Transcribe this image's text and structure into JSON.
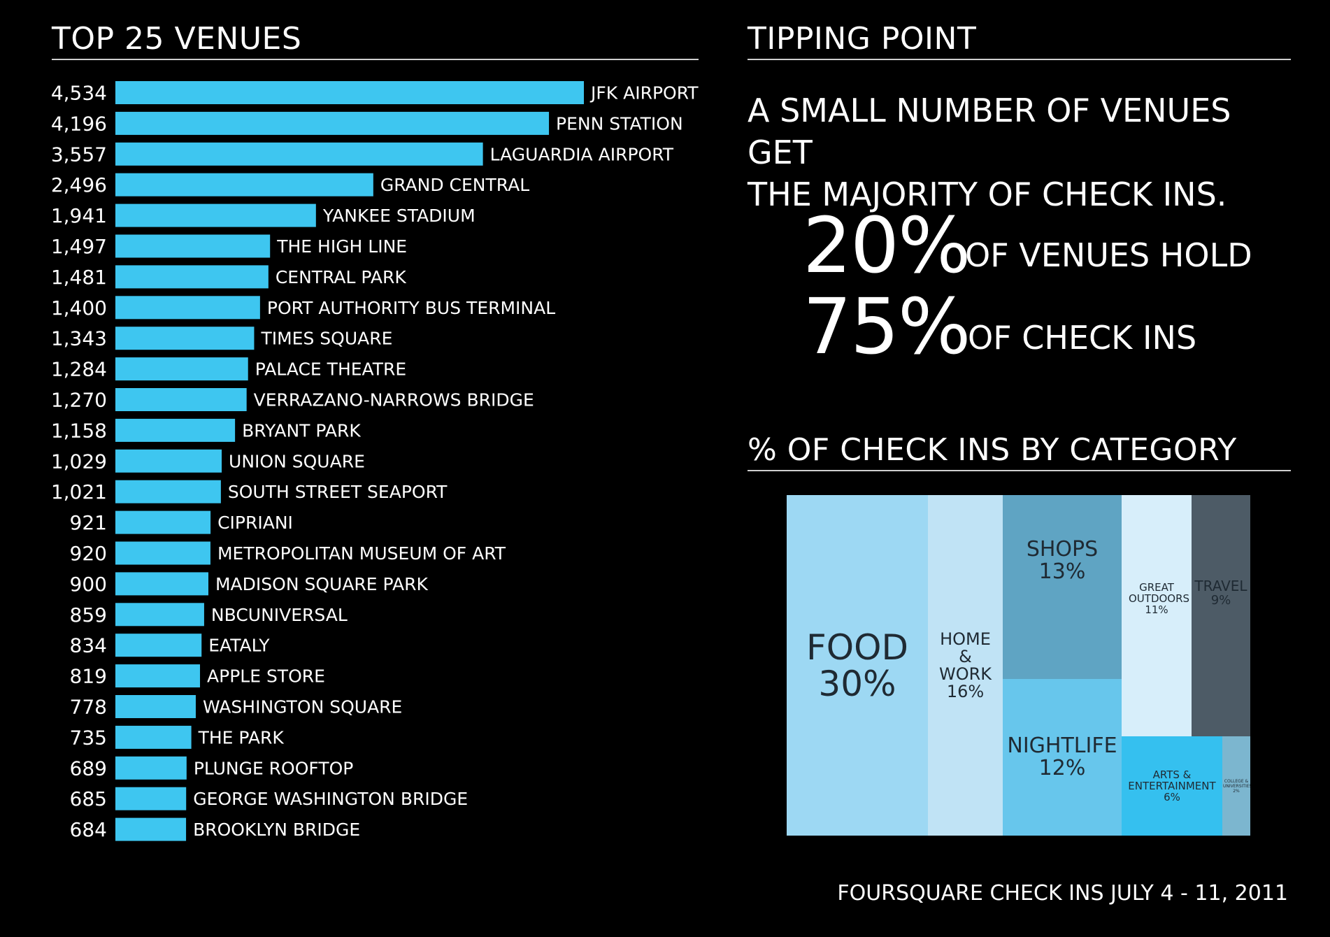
{
  "left_title": "TOP 25 VENUES",
  "right_title": "TIPPING POINT",
  "category_title": "% OF CHECK INS BY CATEGORY",
  "headline_line1": "A SMALL NUMBER OF VENUES GET",
  "headline_line2": "THE MAJORITY OF CHECK INS.",
  "stat1": {
    "value": "20%",
    "text": "OF VENUES HOLD"
  },
  "stat2": {
    "value": "75%",
    "text": "OF CHECK INS"
  },
  "footer": "FOURSQUARE CHECK INS JULY 4 - 11, 2011",
  "colors": {
    "bar": "#3ec6f0",
    "food": "#9dd8f3",
    "home_work": "#c0e3f5",
    "shops": "#5fa4c3",
    "nightlife": "#67c6ec",
    "great_outdoors": "#d7eefa",
    "travel": "#4d5b66",
    "arts": "#35c0ef",
    "college": "#7cb6cf"
  },
  "chart_data": [
    {
      "type": "bar",
      "orientation": "horizontal",
      "title": "TOP 25 VENUES",
      "categories": [
        "JFK AIRPORT",
        "PENN STATION",
        "LAGUARDIA AIRPORT",
        "GRAND CENTRAL",
        "YANKEE STADIUM",
        "THE HIGH LINE",
        "CENTRAL PARK",
        "PORT AUTHORITY BUS TERMINAL",
        "TIMES SQUARE",
        "PALACE THEATRE",
        "VERRAZANO-NARROWS BRIDGE",
        "BRYANT PARK",
        "UNION SQUARE",
        "SOUTH STREET SEAPORT",
        "CIPRIANI",
        "METROPOLITAN MUSEUM OF ART",
        "MADISON SQUARE PARK",
        "NBCUNIVERSAL",
        "EATALY",
        "APPLE STORE",
        "WASHINGTON SQUARE",
        "THE PARK",
        "PLUNGE ROOFTOP",
        "GEORGE WASHINGTON BRIDGE",
        "BROOKLYN BRIDGE"
      ],
      "values": [
        4534,
        4196,
        3557,
        2496,
        1941,
        1497,
        1481,
        1400,
        1343,
        1284,
        1270,
        1158,
        1029,
        1021,
        921,
        920,
        900,
        859,
        834,
        819,
        778,
        735,
        689,
        685,
        684
      ],
      "value_labels": [
        "4,534",
        "4,196",
        "3,557",
        "2,496",
        "1,941",
        "1,497",
        "1,481",
        "1,400",
        "1,343",
        "1,284",
        "1,270",
        "1,158",
        "1,029",
        "1,021",
        "921",
        "920",
        "900",
        "859",
        "834",
        "819",
        "778",
        "735",
        "689",
        "685",
        "684"
      ]
    },
    {
      "type": "treemap",
      "title": "% OF CHECK INS BY CATEGORY",
      "items": [
        {
          "key": "food",
          "label": "FOOD",
          "value": 30,
          "pct_label": "30%"
        },
        {
          "key": "home_work",
          "label": "HOME & WORK",
          "value": 16,
          "pct_label": "16%"
        },
        {
          "key": "shops",
          "label": "SHOPS",
          "value": 13,
          "pct_label": "13%"
        },
        {
          "key": "nightlife",
          "label": "NIGHTLIFE",
          "value": 12,
          "pct_label": "12%"
        },
        {
          "key": "great_outdoors",
          "label": "GREAT OUTDOORS",
          "value": 11,
          "pct_label": "11%"
        },
        {
          "key": "travel",
          "label": "TRAVEL",
          "value": 9,
          "pct_label": "9%"
        },
        {
          "key": "arts",
          "label": "ARTS & ENTERTAINMENT",
          "value": 6,
          "pct_label": "6%"
        },
        {
          "key": "college",
          "label": "COLLEGE & UNIVERSITIES",
          "value": 2,
          "pct_label": "2%"
        }
      ]
    }
  ]
}
